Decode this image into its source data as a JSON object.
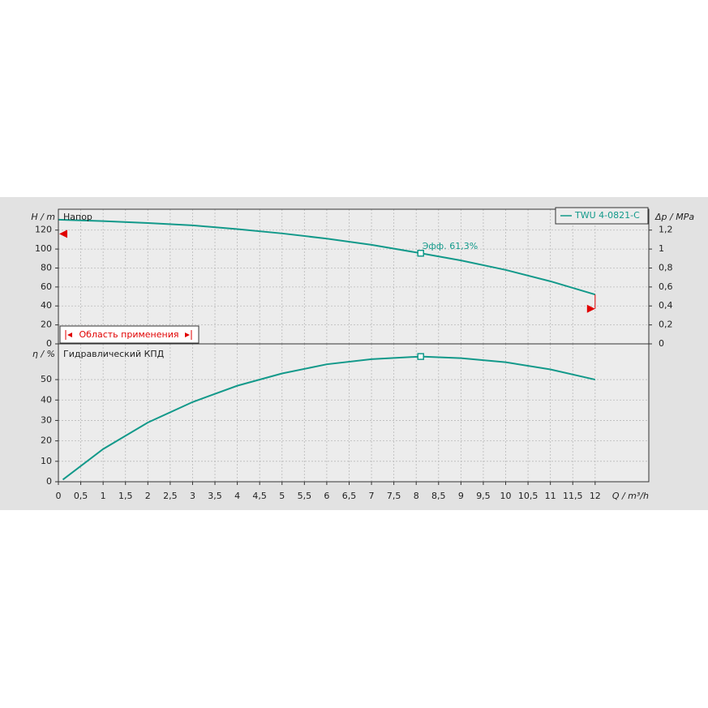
{
  "chart_data": [
    {
      "type": "line",
      "subtitle": "Напор",
      "ylabel": "H / m",
      "y2label": "Δp / MPa",
      "xlim": [
        0,
        13.2
      ],
      "ylim": [
        0,
        142
      ],
      "yticks": [
        0,
        20,
        40,
        60,
        80,
        100,
        120
      ],
      "y2lim": [
        0,
        1.42
      ],
      "y2ticks": [
        0,
        {
          "value": 0.2,
          "label": "0,2"
        },
        {
          "value": 0.4,
          "label": "0,4"
        },
        {
          "value": 0.6,
          "label": "0,6"
        },
        {
          "value": 0.8,
          "label": "0,8"
        },
        1,
        {
          "value": 1.2,
          "label": "1,2"
        }
      ],
      "grid": true,
      "legend": "upper right",
      "x": [
        0,
        1,
        2,
        3,
        4,
        5,
        6,
        7,
        8.1,
        9,
        10,
        11,
        12
      ],
      "series": [
        {
          "name": "TWU 4-0821-C",
          "color": "#12998a",
          "values": [
            131,
            129.5,
            127.5,
            125,
            121,
            116.5,
            111,
            104.5,
            95.6,
            88,
            78,
            66,
            52
          ]
        }
      ],
      "duty_point": {
        "x": 8.1,
        "y": 95.6,
        "label": "Эфф.  61,3%"
      },
      "range_label": "Область применения",
      "range_markers": {
        "x": [
          0,
          12
        ],
        "y": [
          116,
          37
        ],
        "color": "#e00000"
      }
    },
    {
      "type": "line",
      "subtitle": "Гидравлический КПД",
      "ylabel": "η / %",
      "xlabel": "Q / m³/h",
      "xlim": [
        0,
        13.2
      ],
      "ylim": [
        0,
        67.5
      ],
      "yticks": [
        0,
        10,
        20,
        30,
        40,
        50
      ],
      "xticks": [
        0,
        {
          "value": 0.5,
          "label": "0,5"
        },
        1,
        {
          "value": 1.5,
          "label": "1,5"
        },
        2,
        {
          "value": 2.5,
          "label": "2,5"
        },
        3,
        {
          "value": 3.5,
          "label": "3,5"
        },
        4,
        {
          "value": 4.5,
          "label": "4,5"
        },
        5,
        {
          "value": 5.5,
          "label": "5,5"
        },
        6,
        {
          "value": 6.5,
          "label": "6,5"
        },
        7,
        {
          "value": 7.5,
          "label": "7,5"
        },
        8,
        {
          "value": 8.5,
          "label": "8,5"
        },
        9,
        {
          "value": 9.5,
          "label": "9,5"
        },
        10,
        {
          "value": 10.5,
          "label": "10,5"
        },
        11,
        {
          "value": 11.5,
          "label": "11,5"
        },
        12
      ],
      "grid": true,
      "x": [
        0.1,
        1,
        2,
        3,
        4,
        5,
        6,
        7,
        8.1,
        9,
        10,
        11,
        12
      ],
      "series": [
        {
          "color": "#12998a",
          "values": [
            1,
            16,
            29,
            39,
            47,
            53,
            57.5,
            60,
            61.3,
            60.5,
            58.5,
            55,
            50
          ]
        }
      ],
      "duty_point": {
        "x": 8.1,
        "y": 61.3
      }
    }
  ]
}
